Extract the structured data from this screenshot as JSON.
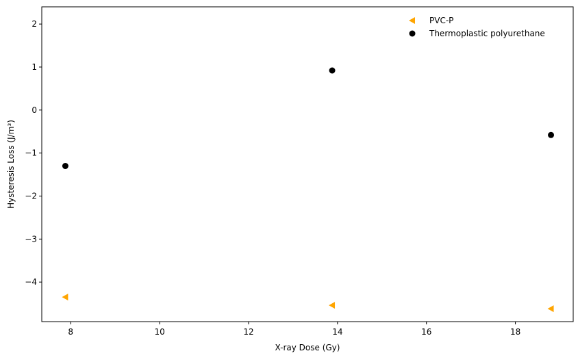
{
  "chart_data": {
    "type": "scatter",
    "title": "",
    "xlabel": "X-ray Dose (Gy)",
    "ylabel": "Hysteresis Loss (J/m³)",
    "xlim": [
      7.35,
      19.3
    ],
    "ylim": [
      -4.92,
      2.4
    ],
    "x_ticks": [
      8,
      10,
      12,
      14,
      16,
      18
    ],
    "x_tick_labels": [
      "8",
      "10",
      "12",
      "14",
      "16",
      "18"
    ],
    "y_ticks": [
      2,
      1,
      0,
      -1,
      -2,
      -3,
      -4
    ],
    "y_tick_labels": [
      "2",
      "1",
      "0",
      "−1",
      "−2",
      "−3",
      "−4"
    ],
    "grid": false,
    "legend_position": "top-right",
    "series": [
      {
        "name": "PVC-P",
        "marker": "triangle-left",
        "color": "#FFA500",
        "x": [
          7.88,
          13.88,
          18.8
        ],
        "y": [
          -4.35,
          -4.54,
          -4.62
        ]
      },
      {
        "name": "Thermoplastic polyurethane",
        "marker": "circle",
        "color": "#000000",
        "x": [
          7.88,
          13.88,
          18.8
        ],
        "y": [
          -1.3,
          0.92,
          -0.58
        ]
      }
    ]
  }
}
